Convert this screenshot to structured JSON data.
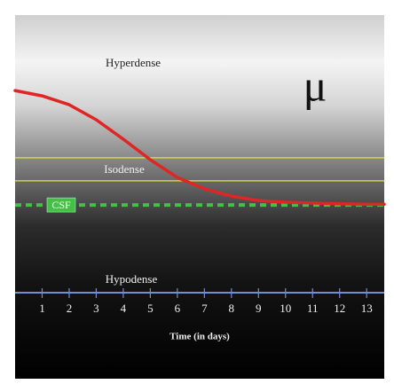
{
  "chart_data": {
    "type": "line",
    "x_label": "Time (in days)",
    "labels": {
      "hyperdense": "Hyperdense",
      "isodense": "Isodense",
      "hypodense": "Hypodense",
      "symbol": "μ"
    },
    "isodense_band": [
      40.3,
      48.6
    ],
    "band_color": "#e6e62e",
    "csf": {
      "label": "CSF",
      "value": 31.6,
      "color": "#44c044"
    },
    "axis_color": "#6f8fd8",
    "x": [
      0,
      1,
      2,
      3,
      4,
      5,
      6,
      7,
      8,
      9,
      10,
      11,
      12,
      13,
      13.65
    ],
    "series": [
      {
        "color": "#e02525",
        "values": [
          72.8,
          70.9,
          67.7,
          62.3,
          55.3,
          47.9,
          41.5,
          37.4,
          34.8,
          33.2,
          32.6,
          32.3,
          32.0,
          31.9,
          31.9
        ]
      }
    ],
    "xlim": [
      0,
      13.65
    ],
    "xticks": [
      1,
      2,
      3,
      4,
      5,
      6,
      7,
      8,
      9,
      10,
      11,
      12,
      13
    ],
    "ylim": [
      0,
      100
    ]
  }
}
